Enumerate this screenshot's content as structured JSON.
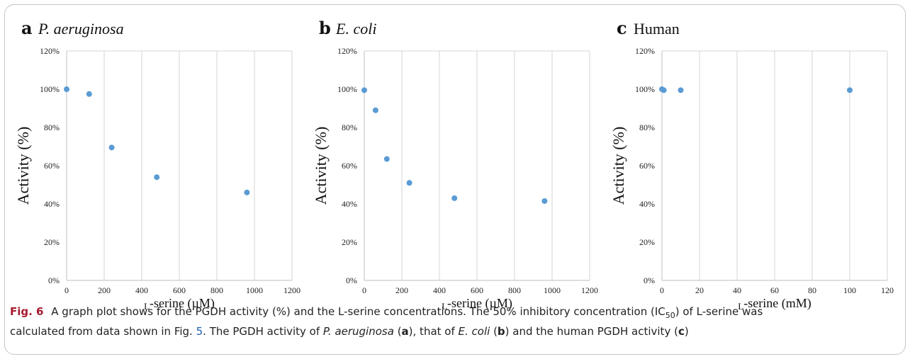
{
  "chart_data": [
    {
      "type": "scatter",
      "panel_letter": "a",
      "title": "P. aeruginosa",
      "title_italic": true,
      "xlabel": "-serine (µM)",
      "xlabel_prefix": "L",
      "ylabel": "Activity (%)",
      "xlim": [
        0,
        1200
      ],
      "ylim": [
        0,
        120
      ],
      "x_ticks": [
        "0",
        "200",
        "400",
        "600",
        "800",
        "1000",
        "1200"
      ],
      "y_ticks": [
        "0%",
        "20%",
        "40%",
        "60%",
        "80%",
        "100%",
        "120%"
      ],
      "grid": "vertical",
      "series": [
        {
          "x": [
            0,
            120,
            240,
            480,
            960
          ],
          "y": [
            100,
            97.5,
            69.5,
            54,
            46
          ]
        }
      ],
      "color": "#5b9bd5"
    },
    {
      "type": "scatter",
      "panel_letter": "b",
      "title": "E. coli",
      "title_italic": true,
      "xlabel": "-serine (µM)",
      "xlabel_prefix": "L",
      "ylabel": "Activity (%)",
      "xlim": [
        0,
        1200
      ],
      "ylim": [
        0,
        120
      ],
      "x_ticks": [
        "0",
        "200",
        "400",
        "600",
        "800",
        "1000",
        "1200"
      ],
      "y_ticks": [
        "0%",
        "20%",
        "40%",
        "60%",
        "80%",
        "100%",
        "120%"
      ],
      "grid": "vertical",
      "series": [
        {
          "x": [
            0,
            60,
            120,
            240,
            480,
            960
          ],
          "y": [
            99.5,
            89,
            63.5,
            51,
            43,
            41.5
          ]
        }
      ],
      "color": "#5b9bd5"
    },
    {
      "type": "scatter",
      "panel_letter": "c",
      "title": "Human",
      "title_italic": false,
      "xlabel": "-serine (mM)",
      "xlabel_prefix": "L",
      "ylabel": "Activity (%)",
      "xlim": [
        0,
        120
      ],
      "ylim": [
        0,
        120
      ],
      "x_ticks": [
        "0",
        "20",
        "40",
        "60",
        "80",
        "100",
        "120"
      ],
      "y_ticks": [
        "0%",
        "20%",
        "40%",
        "60%",
        "80%",
        "100%",
        "120%"
      ],
      "grid": "vertical",
      "series": [
        {
          "x": [
            0,
            1,
            10,
            100
          ],
          "y": [
            100,
            99.5,
            99.5,
            99.5
          ]
        }
      ],
      "color": "#5b9bd5"
    }
  ],
  "caption": {
    "label": "Fig. 6",
    "line1": "A graph plot shows for the PGDH activity (%) and the L-serine concentrations. The 50% inhibitory concentration (IC",
    "sub50": "50",
    "line1b": ") of L-serine was",
    "line2a": "calculated from data shown in Fig. ",
    "fig_ref": "5",
    "line2b": ". The PGDH activity of ",
    "org1": "P. aeruginosa",
    "p1": " (",
    "pa": "a",
    "p2": "), that of ",
    "org2": "E. coli",
    "p3": " (",
    "pb": "b",
    "p4": ") and the human PGDH activity (",
    "pc": "c",
    "p5": ")"
  }
}
